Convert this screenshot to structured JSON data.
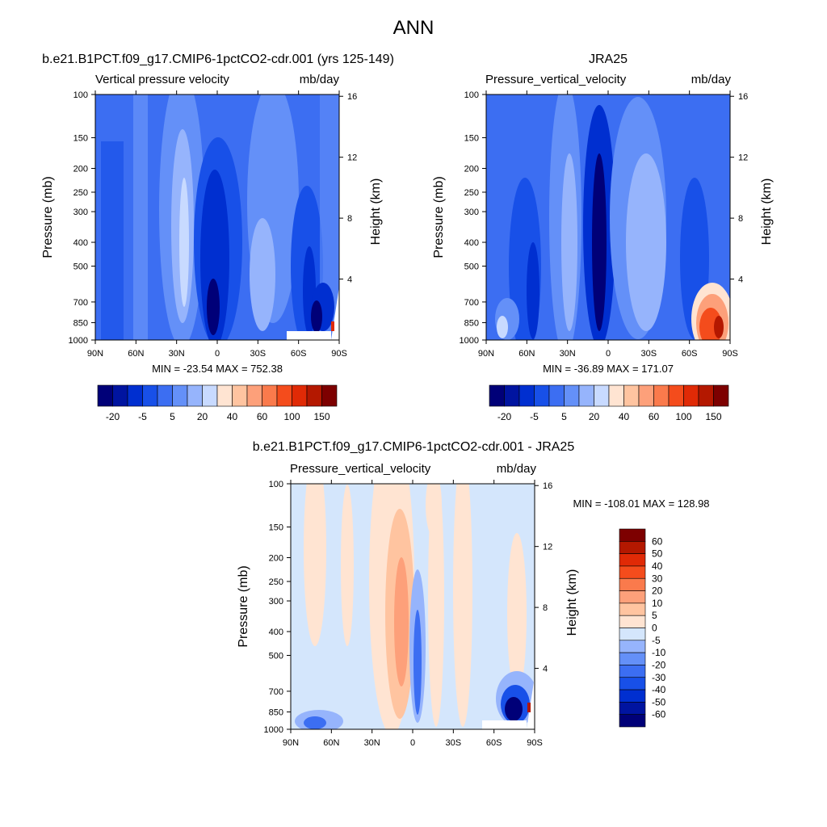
{
  "figure": {
    "title": "ANN",
    "y_left_label": "Pressure (mb)",
    "y_right_label": "Height (km)",
    "x_tick_labels": [
      "90N",
      "60N",
      "30N",
      "0",
      "30S",
      "60S",
      "90S"
    ],
    "p_tick_labels": [
      "100",
      "150",
      "200",
      "250",
      "300",
      "400",
      "500",
      "700",
      "850",
      "1000"
    ],
    "h_tick_labels": [
      "16",
      "12",
      "8",
      "4"
    ]
  },
  "colors": {
    "abs_levels": [
      "#000078",
      "#0014a0",
      "#002fd0",
      "#1850e8",
      "#3c6ef2",
      "#6490f8",
      "#96b4fc",
      "#c8daff",
      "#ffe4d2",
      "#ffc4a0",
      "#fda07a",
      "#fa7a4c",
      "#f44c1c",
      "#e02a06",
      "#b41800",
      "#7d0000"
    ],
    "diff_levels": [
      "#000078",
      "#0014a0",
      "#002fd0",
      "#1850e8",
      "#3c6ef2",
      "#6490f8",
      "#96b4fc",
      "#d4e6fc",
      "#ffe4d2",
      "#ffc4a0",
      "#fda07a",
      "#fa7a4c",
      "#f44c1c",
      "#e02a06",
      "#b41800",
      "#7d0000"
    ]
  },
  "chart_data": [
    {
      "type": "heatmap",
      "title": "b.e21.B1PCT.f09_g17.CMIP6-1pctCO2-cdr.001 (yrs 125-149)",
      "variable": "Vertical pressure velocity",
      "units": "mb/day",
      "stats": "MIN = -23.54  MAX = 752.38",
      "colorbar_labels": [
        "-20",
        "-5",
        "5",
        "20",
        "40",
        "60",
        "100",
        "150"
      ],
      "xlim": [
        "90N",
        "90S"
      ],
      "ylim_mb": [
        1000,
        100
      ],
      "y_scale": "log"
    },
    {
      "type": "heatmap",
      "title": "JRA25",
      "variable": "Pressure_vertical_velocity",
      "units": "mb/day",
      "stats": "MIN = -36.89  MAX = 171.07",
      "colorbar_labels": [
        "-20",
        "-5",
        "5",
        "20",
        "40",
        "60",
        "100",
        "150"
      ],
      "xlim": [
        "90N",
        "90S"
      ],
      "ylim_mb": [
        1000,
        100
      ],
      "y_scale": "log"
    },
    {
      "type": "heatmap",
      "title": "b.e21.B1PCT.f09_g17.CMIP6-1pctCO2-cdr.001 - JRA25",
      "variable": "Pressure_vertical_velocity",
      "units": "mb/day",
      "stats": "MIN = -108.01  MAX = 128.98",
      "colorbar_labels": [
        "60",
        "50",
        "40",
        "30",
        "20",
        "10",
        "5",
        "0",
        "-5",
        "-10",
        "-20",
        "-30",
        "-40",
        "-50",
        "-60"
      ],
      "xlim": [
        "90N",
        "90S"
      ],
      "ylim_mb": [
        1000,
        100
      ],
      "y_scale": "log"
    }
  ]
}
